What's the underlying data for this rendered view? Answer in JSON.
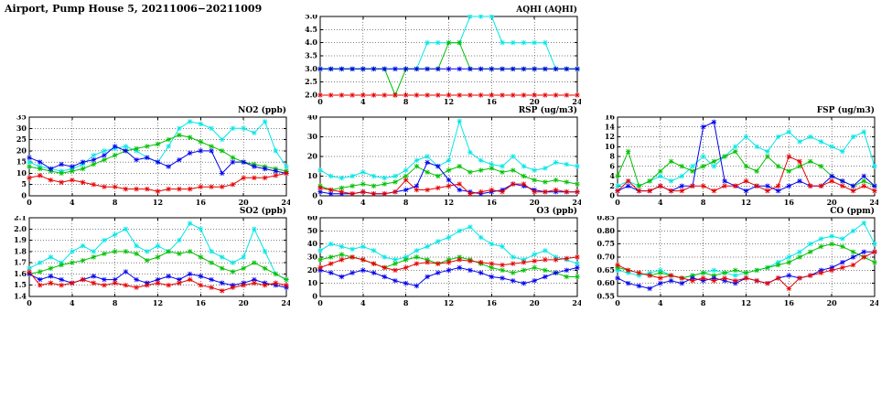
{
  "title": "Airport, Pump House 5, 20211006−20211009",
  "x_hours": [
    0,
    1,
    2,
    3,
    4,
    5,
    6,
    7,
    8,
    9,
    10,
    11,
    12,
    13,
    14,
    15,
    16,
    17,
    18,
    19,
    20,
    21,
    22,
    23,
    24
  ],
  "chart_data": [
    {
      "title": "AQHI (AQHI)",
      "type": "line",
      "xlim": [
        0,
        24
      ],
      "xticks": [
        0,
        4,
        8,
        12,
        16,
        20,
        24
      ],
      "xtick_labels": [
        "0",
        "4",
        "8",
        "12",
        "16",
        "20",
        "24"
      ],
      "ylim": [
        2.0,
        5.0
      ],
      "yticks": [
        2.0,
        2.5,
        3.0,
        3.5,
        4.0,
        4.5,
        5.0
      ],
      "ytick_labels": [
        "2.0",
        "2.5",
        "3.0",
        "3.5",
        "4.0",
        "4.5",
        "5.0"
      ],
      "grid": true,
      "legend": "none",
      "series": [
        {
          "color": "#00e6e6",
          "values": [
            3,
            3,
            3,
            3,
            3,
            3,
            3,
            3,
            3,
            3,
            4,
            4,
            4,
            4,
            5,
            5,
            5,
            4,
            4,
            4,
            4,
            4,
            3,
            3,
            3
          ]
        },
        {
          "color": "#00c000",
          "values": [
            3,
            3,
            3,
            3,
            3,
            3,
            3,
            2,
            3,
            3,
            3,
            3,
            4,
            4,
            3,
            3,
            3,
            3,
            3,
            3,
            3,
            3,
            3,
            3,
            3
          ]
        },
        {
          "color": "#0000ee",
          "values": [
            3,
            3,
            3,
            3,
            3,
            3,
            3,
            3,
            3,
            3,
            3,
            3,
            3,
            3,
            3,
            3,
            3,
            3,
            3,
            3,
            3,
            3,
            3,
            3,
            3
          ]
        },
        {
          "color": "#e60000",
          "values": [
            2,
            2,
            2,
            2,
            2,
            2,
            2,
            2,
            2,
            2,
            2,
            2,
            2,
            2,
            2,
            2,
            2,
            2,
            2,
            2,
            2,
            2,
            2,
            2,
            2
          ]
        }
      ]
    },
    {
      "title": "NO2 (ppb)",
      "type": "line",
      "xlim": [
        0,
        24
      ],
      "xticks": [
        0,
        4,
        8,
        12,
        16,
        20,
        24
      ],
      "xtick_labels": [
        "0",
        "4",
        "8",
        "12",
        "16",
        "20",
        "24"
      ],
      "ylim": [
        0,
        35
      ],
      "yticks": [
        0,
        5,
        10,
        15,
        20,
        25,
        30,
        35
      ],
      "ytick_labels": [
        "0",
        "5",
        "10",
        "15",
        "20",
        "25",
        "30",
        "35"
      ],
      "grid": true,
      "legend": "none",
      "series": [
        {
          "color": "#00e6e6",
          "values": [
            15,
            13,
            12,
            11,
            12,
            14,
            18,
            20,
            21,
            22,
            20,
            17,
            15,
            22,
            30,
            33,
            32,
            30,
            25,
            30,
            30,
            28,
            33,
            20,
            13
          ]
        },
        {
          "color": "#00c000",
          "values": [
            13,
            12,
            11,
            10,
            11,
            12,
            14,
            16,
            18,
            20,
            21,
            22,
            23,
            25,
            27,
            26,
            24,
            22,
            20,
            17,
            15,
            14,
            13,
            12,
            11
          ]
        },
        {
          "color": "#0000ee",
          "values": [
            17,
            15,
            12,
            14,
            13,
            15,
            16,
            18,
            22,
            20,
            16,
            17,
            15,
            13,
            16,
            19,
            20,
            20,
            10,
            15,
            15,
            13,
            12,
            11,
            10
          ]
        },
        {
          "color": "#e60000",
          "values": [
            8,
            9,
            7,
            6,
            7,
            6,
            5,
            4,
            4,
            3,
            3,
            3,
            2,
            3,
            3,
            3,
            4,
            4,
            4,
            5,
            8,
            8,
            8,
            9,
            10
          ]
        }
      ]
    },
    {
      "title": "RSP (ug/m3)",
      "type": "line",
      "xlim": [
        0,
        24
      ],
      "xticks": [
        0,
        4,
        8,
        12,
        16,
        20,
        24
      ],
      "xtick_labels": [
        "0",
        "4",
        "8",
        "12",
        "16",
        "20",
        "24"
      ],
      "ylim": [
        0,
        40
      ],
      "yticks": [
        0,
        10,
        20,
        30,
        40
      ],
      "ytick_labels": [
        "0",
        "10",
        "20",
        "30",
        "40"
      ],
      "grid": true,
      "legend": "none",
      "series": [
        {
          "color": "#00e6e6",
          "values": [
            13,
            10,
            9,
            10,
            12,
            10,
            9,
            10,
            13,
            18,
            20,
            15,
            18,
            38,
            22,
            18,
            16,
            15,
            20,
            15,
            13,
            14,
            17,
            16,
            15
          ]
        },
        {
          "color": "#00c000",
          "values": [
            5,
            3,
            4,
            5,
            6,
            5,
            6,
            7,
            10,
            15,
            12,
            10,
            13,
            15,
            12,
            13,
            14,
            12,
            13,
            10,
            8,
            7,
            8,
            7,
            6
          ]
        },
        {
          "color": "#0000ee",
          "values": [
            2,
            1,
            1,
            1,
            2,
            1,
            1,
            2,
            3,
            5,
            17,
            15,
            8,
            3,
            2,
            1,
            2,
            3,
            6,
            5,
            3,
            2,
            2,
            2,
            2
          ]
        },
        {
          "color": "#e60000",
          "values": [
            4,
            3,
            2,
            1,
            2,
            1,
            1,
            2,
            8,
            3,
            3,
            4,
            5,
            6,
            1,
            2,
            3,
            2,
            6,
            6,
            2,
            2,
            3,
            2,
            2
          ]
        }
      ]
    },
    {
      "title": "FSP (ug/m3)",
      "type": "line",
      "xlim": [
        0,
        24
      ],
      "xticks": [
        0,
        4,
        8,
        12,
        16,
        20,
        24
      ],
      "xtick_labels": [
        "0",
        "4",
        "8",
        "12",
        "16",
        "20",
        "24"
      ],
      "ylim": [
        0,
        16
      ],
      "yticks": [
        0,
        2,
        4,
        6,
        8,
        10,
        12,
        14,
        16
      ],
      "ytick_labels": [
        "0",
        "2",
        "4",
        "6",
        "8",
        "10",
        "12",
        "14",
        "16"
      ],
      "grid": true,
      "legend": "none",
      "series": [
        {
          "color": "#00e6e6",
          "values": [
            2,
            3,
            2,
            3,
            4,
            3,
            4,
            6,
            8,
            6,
            8,
            10,
            12,
            10,
            9,
            12,
            13,
            11,
            12,
            11,
            10,
            9,
            12,
            13,
            6
          ]
        },
        {
          "color": "#00c000",
          "values": [
            4,
            9,
            2,
            3,
            5,
            7,
            6,
            5,
            6,
            7,
            8,
            9,
            6,
            5,
            8,
            6,
            5,
            6,
            7,
            6,
            4,
            3,
            2,
            3,
            2
          ]
        },
        {
          "color": "#0000ee",
          "values": [
            1,
            2,
            1,
            1,
            2,
            1,
            2,
            2,
            14,
            15,
            3,
            2,
            1,
            2,
            2,
            1,
            2,
            3,
            2,
            2,
            4,
            3,
            2,
            4,
            2
          ]
        },
        {
          "color": "#e60000",
          "values": [
            1,
            3,
            1,
            1,
            2,
            1,
            1,
            2,
            2,
            1,
            2,
            2,
            3,
            2,
            1,
            2,
            8,
            7,
            2,
            2,
            3,
            2,
            1,
            2,
            1
          ]
        }
      ]
    },
    {
      "title": "SO2 (ppb)",
      "type": "line",
      "xlim": [
        0,
        24
      ],
      "xticks": [
        0,
        4,
        8,
        12,
        16,
        20,
        24
      ],
      "xtick_labels": [
        "0",
        "4",
        "8",
        "12",
        "16",
        "20",
        "24"
      ],
      "ylim": [
        1.4,
        2.1
      ],
      "yticks": [
        1.4,
        1.5,
        1.6,
        1.7,
        1.8,
        1.9,
        2.0,
        2.1
      ],
      "ytick_labels": [
        "1.4",
        "1.5",
        "1.6",
        "1.7",
        "1.8",
        "1.9",
        "2.0",
        "2.1"
      ],
      "grid": true,
      "legend": "none",
      "series": [
        {
          "color": "#00e6e6",
          "values": [
            1.65,
            1.7,
            1.75,
            1.7,
            1.8,
            1.85,
            1.8,
            1.9,
            1.95,
            2.0,
            1.85,
            1.8,
            1.85,
            1.8,
            1.9,
            2.05,
            2.0,
            1.8,
            1.75,
            1.7,
            1.75,
            2.0,
            1.8,
            1.6,
            1.55
          ]
        },
        {
          "color": "#00c000",
          "values": [
            1.6,
            1.62,
            1.65,
            1.68,
            1.7,
            1.72,
            1.75,
            1.78,
            1.8,
            1.8,
            1.78,
            1.72,
            1.75,
            1.8,
            1.78,
            1.8,
            1.75,
            1.7,
            1.65,
            1.62,
            1.65,
            1.7,
            1.65,
            1.6,
            1.55
          ]
        },
        {
          "color": "#0000ee",
          "values": [
            1.6,
            1.55,
            1.58,
            1.55,
            1.52,
            1.55,
            1.58,
            1.55,
            1.55,
            1.62,
            1.55,
            1.52,
            1.55,
            1.58,
            1.55,
            1.6,
            1.58,
            1.55,
            1.52,
            1.5,
            1.52,
            1.55,
            1.52,
            1.5,
            1.48
          ]
        },
        {
          "color": "#e60000",
          "values": [
            1.62,
            1.5,
            1.52,
            1.5,
            1.52,
            1.55,
            1.52,
            1.5,
            1.52,
            1.5,
            1.48,
            1.5,
            1.52,
            1.5,
            1.52,
            1.55,
            1.5,
            1.48,
            1.45,
            1.48,
            1.5,
            1.52,
            1.5,
            1.52,
            1.5
          ]
        }
      ]
    },
    {
      "title": "O3 (ppb)",
      "type": "line",
      "xlim": [
        0,
        24
      ],
      "xticks": [
        0,
        4,
        8,
        12,
        16,
        20,
        24
      ],
      "xtick_labels": [
        "0",
        "4",
        "8",
        "12",
        "16",
        "20",
        "24"
      ],
      "ylim": [
        0,
        60
      ],
      "yticks": [
        0,
        10,
        20,
        30,
        40,
        50,
        60
      ],
      "ytick_labels": [
        "0",
        "10",
        "20",
        "30",
        "40",
        "50",
        "60"
      ],
      "grid": true,
      "legend": "none",
      "series": [
        {
          "color": "#00e6e6",
          "values": [
            35,
            40,
            38,
            36,
            38,
            35,
            30,
            28,
            30,
            35,
            38,
            42,
            45,
            50,
            53,
            45,
            40,
            38,
            30,
            28,
            32,
            35,
            30,
            28,
            25
          ]
        },
        {
          "color": "#00c000",
          "values": [
            28,
            30,
            32,
            30,
            28,
            25,
            22,
            25,
            28,
            30,
            28,
            25,
            28,
            30,
            28,
            25,
            22,
            20,
            18,
            20,
            22,
            20,
            18,
            15,
            15
          ]
        },
        {
          "color": "#0000ee",
          "values": [
            20,
            18,
            15,
            18,
            20,
            18,
            15,
            12,
            10,
            8,
            15,
            18,
            20,
            22,
            20,
            18,
            15,
            14,
            12,
            10,
            12,
            15,
            18,
            20,
            22
          ]
        },
        {
          "color": "#e60000",
          "values": [
            22,
            25,
            28,
            30,
            28,
            25,
            22,
            20,
            22,
            25,
            26,
            25,
            26,
            28,
            27,
            26,
            25,
            24,
            25,
            26,
            27,
            28,
            28,
            29,
            30
          ]
        }
      ]
    },
    {
      "title": "CO (ppm)",
      "type": "line",
      "xlim": [
        0,
        24
      ],
      "xticks": [
        0,
        4,
        8,
        12,
        16,
        20,
        24
      ],
      "xtick_labels": [
        "0",
        "4",
        "8",
        "12",
        "16",
        "20",
        "24"
      ],
      "ylim": [
        0.55,
        0.85
      ],
      "yticks": [
        0.55,
        0.6,
        0.65,
        0.7,
        0.75,
        0.8,
        0.85
      ],
      "ytick_labels": [
        "0.55",
        "0.60",
        "0.65",
        "0.70",
        "0.75",
        "0.80",
        "0.85"
      ],
      "grid": true,
      "legend": "none",
      "series": [
        {
          "color": "#00e6e6",
          "values": [
            0.65,
            0.64,
            0.63,
            0.64,
            0.65,
            0.63,
            0.62,
            0.63,
            0.64,
            0.65,
            0.64,
            0.63,
            0.64,
            0.65,
            0.66,
            0.68,
            0.7,
            0.72,
            0.75,
            0.77,
            0.78,
            0.77,
            0.8,
            0.83,
            0.75
          ]
        },
        {
          "color": "#00c000",
          "values": [
            0.66,
            0.65,
            0.64,
            0.63,
            0.64,
            0.63,
            0.62,
            0.63,
            0.64,
            0.63,
            0.64,
            0.65,
            0.64,
            0.65,
            0.66,
            0.67,
            0.68,
            0.7,
            0.72,
            0.74,
            0.75,
            0.74,
            0.72,
            0.7,
            0.68
          ]
        },
        {
          "color": "#0000ee",
          "values": [
            0.62,
            0.6,
            0.59,
            0.58,
            0.6,
            0.61,
            0.6,
            0.62,
            0.61,
            0.62,
            0.61,
            0.6,
            0.62,
            0.61,
            0.6,
            0.62,
            0.63,
            0.62,
            0.63,
            0.65,
            0.66,
            0.68,
            0.7,
            0.72,
            0.72
          ]
        },
        {
          "color": "#e60000",
          "values": [
            0.67,
            0.65,
            0.64,
            0.63,
            0.62,
            0.63,
            0.62,
            0.61,
            0.62,
            0.61,
            0.62,
            0.61,
            0.62,
            0.61,
            0.6,
            0.62,
            0.58,
            0.62,
            0.63,
            0.64,
            0.65,
            0.66,
            0.67,
            0.7,
            0.72
          ]
        }
      ]
    }
  ]
}
